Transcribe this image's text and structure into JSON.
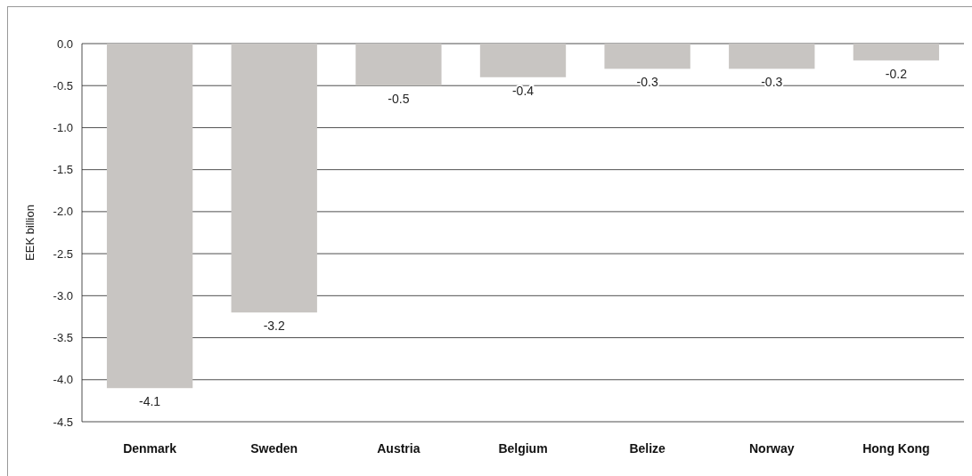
{
  "chart_data": {
    "type": "bar",
    "ylabel": "EEK billion",
    "categories": [
      "Denmark",
      "Sweden",
      "Austria",
      "Belgium",
      "Belize",
      "Norway",
      "Hong Kong"
    ],
    "values": [
      -4.1,
      -3.2,
      -0.5,
      -0.4,
      -0.3,
      -0.3,
      -0.2
    ],
    "color": "#c8c5c2",
    "ylim": [
      -4.5,
      0
    ],
    "yticks": [
      {
        "value": 0,
        "label": "0.0"
      },
      {
        "value": -0.5,
        "label": "-0.5"
      },
      {
        "value": -1,
        "label": "-1.0"
      },
      {
        "value": -1.5,
        "label": "-1.5"
      },
      {
        "value": -2,
        "label": "-2.0"
      },
      {
        "value": -2.5,
        "label": "-2.5"
      },
      {
        "value": -3,
        "label": "-3.0"
      },
      {
        "value": -3.5,
        "label": "-3.5"
      },
      {
        "value": -4,
        "label": "-4.0"
      },
      {
        "value": -4.5,
        "label": "-4.5"
      }
    ],
    "grid": "y",
    "data_labels": true
  }
}
